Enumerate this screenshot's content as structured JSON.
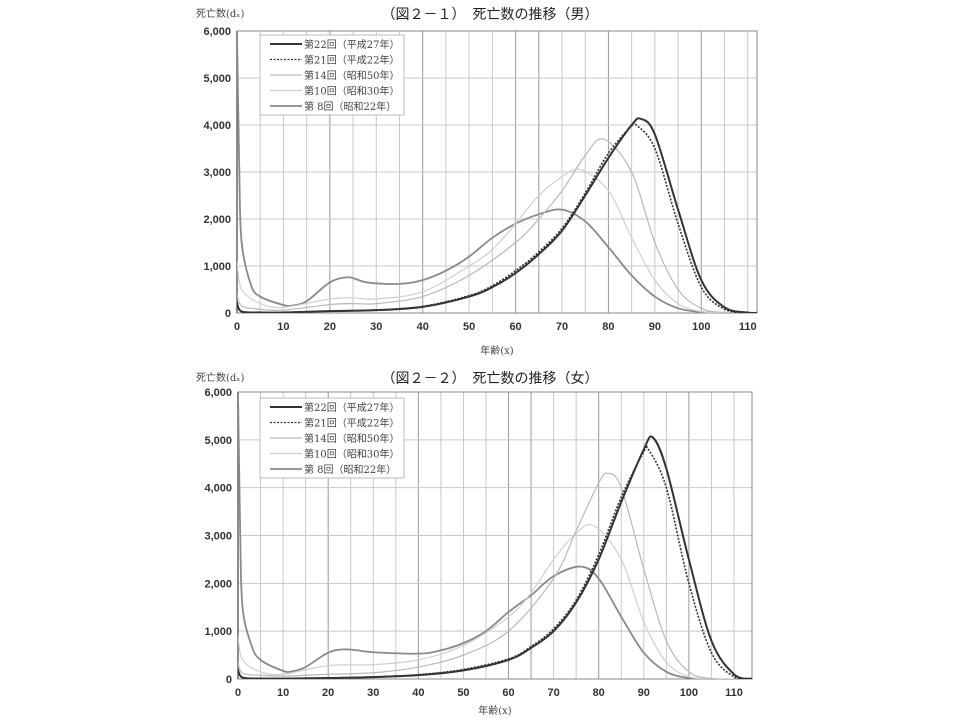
{
  "chart_data": [
    {
      "type": "line",
      "title": "（図２－１）　死亡数の推移（男）",
      "ylabel": "死亡数(dₓ)",
      "xlabel": "年齢(x)",
      "xlim": [
        0,
        112
      ],
      "ylim": [
        0,
        6000
      ],
      "xticks": [
        0,
        10,
        20,
        30,
        40,
        50,
        60,
        70,
        80,
        90,
        100,
        110
      ],
      "yticks": [
        0,
        1000,
        2000,
        3000,
        4000,
        5000,
        6000
      ],
      "ytick_labels": [
        "0",
        "1,000",
        "2,000",
        "3,000",
        "4,000",
        "5,000",
        "6,000"
      ],
      "grid": true,
      "legend_position": "top-left",
      "series": [
        {
          "name": "第22回（平成27年）",
          "color": "#333333",
          "style": "solid",
          "x": [
            0,
            1,
            5,
            10,
            20,
            30,
            40,
            50,
            55,
            60,
            65,
            70,
            75,
            80,
            85,
            87,
            90,
            95,
            100,
            105,
            110,
            112
          ],
          "y": [
            200,
            30,
            12,
            10,
            40,
            60,
            130,
            350,
            550,
            850,
            1250,
            1750,
            2500,
            3300,
            4000,
            4130,
            3800,
            2200,
            700,
            120,
            10,
            3
          ]
        },
        {
          "name": "第21回（平成22年）",
          "color": "#333333",
          "style": "dashed",
          "x": [
            0,
            1,
            5,
            10,
            20,
            30,
            40,
            50,
            55,
            60,
            65,
            70,
            75,
            80,
            85,
            86,
            90,
            95,
            100,
            105,
            110,
            112
          ],
          "y": [
            230,
            35,
            14,
            12,
            45,
            65,
            140,
            370,
            580,
            900,
            1300,
            1800,
            2550,
            3400,
            3980,
            4000,
            3500,
            1900,
            550,
            80,
            5,
            2
          ]
        },
        {
          "name": "第14回（昭和50年）",
          "color": "#b8b8b8",
          "style": "solid",
          "x": [
            0,
            1,
            5,
            10,
            20,
            25,
            30,
            40,
            50,
            60,
            65,
            70,
            75,
            79,
            85,
            90,
            95,
            100,
            105,
            110
          ],
          "y": [
            400,
            150,
            80,
            60,
            180,
            200,
            200,
            350,
            800,
            1500,
            2000,
            2600,
            3350,
            3700,
            3000,
            1500,
            500,
            100,
            10,
            0
          ]
        },
        {
          "name": "第10回（昭和30年）",
          "color": "#cfcfcf",
          "style": "solid",
          "x": [
            0,
            1,
            5,
            10,
            20,
            25,
            30,
            40,
            50,
            55,
            60,
            65,
            70,
            74,
            80,
            85,
            90,
            95,
            100,
            105
          ],
          "y": [
            1100,
            500,
            200,
            120,
            300,
            320,
            300,
            450,
            1000,
            1350,
            1900,
            2500,
            2900,
            3050,
            2600,
            1600,
            700,
            200,
            30,
            0
          ]
        },
        {
          "name": "第 8回（昭和22年）",
          "color": "#8a8a8a",
          "style": "solid",
          "x": [
            0,
            0.5,
            1,
            3,
            5,
            10,
            12,
            15,
            20,
            24,
            28,
            35,
            40,
            45,
            50,
            55,
            60,
            65,
            70,
            75,
            80,
            85,
            90,
            95,
            100,
            105
          ],
          "y": [
            6000,
            3000,
            1500,
            600,
            350,
            170,
            160,
            250,
            650,
            760,
            650,
            620,
            700,
            900,
            1200,
            1600,
            1900,
            2100,
            2200,
            1950,
            1400,
            800,
            350,
            100,
            20,
            0
          ]
        }
      ]
    },
    {
      "type": "line",
      "title": "（図２－２）　死亡数の推移（女）",
      "ylabel": "死亡数(dₓ)",
      "xlabel": "年齢(x)",
      "xlim": [
        0,
        114
      ],
      "ylim": [
        0,
        6000
      ],
      "xticks": [
        0,
        10,
        20,
        30,
        40,
        50,
        60,
        70,
        80,
        90,
        100,
        110
      ],
      "yticks": [
        0,
        1000,
        2000,
        3000,
        4000,
        5000,
        6000
      ],
      "ytick_labels": [
        "0",
        "1,000",
        "2,000",
        "3,000",
        "4,000",
        "5,000",
        "6,000"
      ],
      "grid": true,
      "legend_position": "top-left",
      "series": [
        {
          "name": "第22回（平成27年）",
          "color": "#333333",
          "style": "solid",
          "x": [
            0,
            1,
            5,
            10,
            20,
            30,
            40,
            50,
            60,
            65,
            70,
            75,
            80,
            85,
            90,
            92,
            95,
            100,
            105,
            110,
            114
          ],
          "y": [
            180,
            30,
            10,
            8,
            20,
            40,
            80,
            180,
            400,
            650,
            1000,
            1600,
            2500,
            3700,
            4800,
            5050,
            4400,
            2500,
            800,
            100,
            5
          ]
        },
        {
          "name": "第21回（平成22年）",
          "color": "#333333",
          "style": "dashed",
          "x": [
            0,
            1,
            5,
            10,
            20,
            30,
            40,
            50,
            60,
            65,
            70,
            75,
            80,
            85,
            90,
            91,
            95,
            100,
            105,
            110,
            114
          ],
          "y": [
            200,
            35,
            12,
            10,
            22,
            45,
            90,
            200,
            420,
            680,
            1050,
            1650,
            2600,
            3800,
            4750,
            4800,
            4000,
            2000,
            550,
            50,
            2
          ]
        },
        {
          "name": "第14回（昭和50年）",
          "color": "#b8b8b8",
          "style": "solid",
          "x": [
            0,
            1,
            5,
            10,
            20,
            30,
            40,
            50,
            60,
            70,
            75,
            80,
            82,
            85,
            90,
            95,
            100,
            105,
            110
          ],
          "y": [
            350,
            120,
            80,
            60,
            100,
            130,
            250,
            500,
            1000,
            2100,
            3100,
            4100,
            4300,
            4000,
            2300,
            800,
            150,
            10,
            0
          ]
        },
        {
          "name": "第10回（昭和30年）",
          "color": "#cfcfcf",
          "style": "solid",
          "x": [
            0,
            1,
            5,
            10,
            20,
            30,
            40,
            50,
            60,
            65,
            70,
            75,
            79,
            85,
            90,
            95,
            100,
            105
          ],
          "y": [
            900,
            400,
            150,
            100,
            280,
            300,
            400,
            700,
            1300,
            1800,
            2500,
            3050,
            3200,
            2500,
            1200,
            350,
            50,
            0
          ]
        },
        {
          "name": "第 8回（昭和22年）",
          "color": "#8a8a8a",
          "style": "solid",
          "x": [
            0,
            0.5,
            1,
            3,
            5,
            10,
            12,
            15,
            20,
            24,
            30,
            40,
            45,
            50,
            55,
            60,
            65,
            70,
            76,
            80,
            85,
            90,
            95,
            100,
            105
          ],
          "y": [
            6000,
            3000,
            1500,
            700,
            400,
            170,
            160,
            250,
            550,
            620,
            560,
            530,
            600,
            750,
            1000,
            1400,
            1750,
            2150,
            2350,
            2100,
            1300,
            550,
            150,
            20,
            0
          ]
        }
      ]
    }
  ]
}
